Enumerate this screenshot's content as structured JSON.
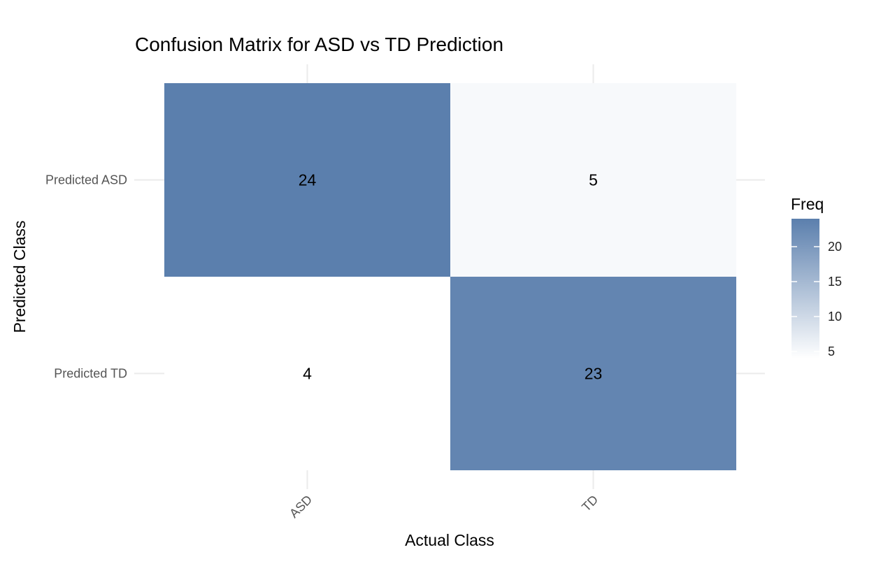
{
  "chart_data": {
    "type": "heatmap",
    "title": "Confusion Matrix for ASD vs TD Prediction",
    "xlabel": "Actual Class",
    "ylabel": "Predicted Class",
    "x_categories": [
      "ASD",
      "TD"
    ],
    "y_categories": [
      "Predicted ASD",
      "Predicted TD"
    ],
    "cells": [
      {
        "x": "ASD",
        "y": "Predicted ASD",
        "value": 24
      },
      {
        "x": "TD",
        "y": "Predicted ASD",
        "value": 5
      },
      {
        "x": "ASD",
        "y": "Predicted TD",
        "value": 4
      },
      {
        "x": "TD",
        "y": "Predicted TD",
        "value": 23
      }
    ],
    "legend": {
      "title": "Freq",
      "ticks": [
        5,
        10,
        15,
        20
      ],
      "range": [
        4,
        24
      ],
      "placement": "right"
    },
    "colors": {
      "low": "#ffffff",
      "high": "#5b7fad"
    },
    "grid": true
  }
}
